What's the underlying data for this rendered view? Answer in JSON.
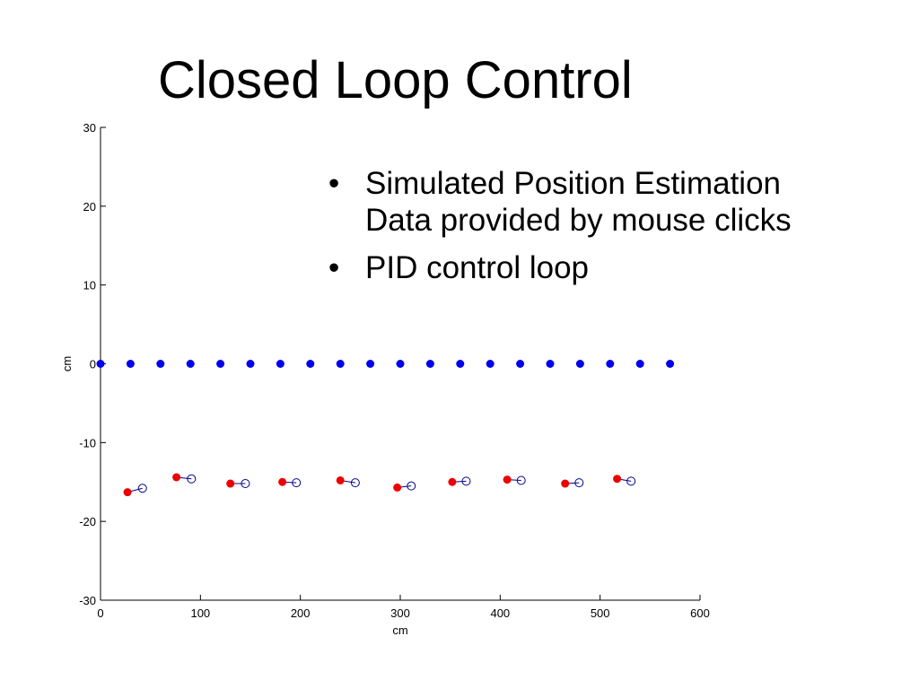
{
  "slide": {
    "title": "Closed Loop Control",
    "bullets": [
      {
        "marker": "•",
        "lines": [
          "Simulated Position Estimation",
          "Data provided by mouse clicks"
        ]
      },
      {
        "marker": "•",
        "lines": [
          "PID control loop"
        ]
      }
    ]
  },
  "chart_data": {
    "type": "scatter",
    "title": "",
    "xlabel": "cm",
    "ylabel": "cm",
    "xlim": [
      0,
      600
    ],
    "ylim": [
      -30,
      30
    ],
    "xticks": [
      0,
      100,
      200,
      300,
      400,
      500,
      600
    ],
    "yticks": [
      -30,
      -20,
      -10,
      0,
      10,
      20,
      30
    ],
    "grid": false,
    "colors": {
      "path": "#0000ee",
      "actual": "#ee0000",
      "estimate": "#000088",
      "axis": "#000000"
    },
    "series": [
      {
        "marker": "filled-circle",
        "color": "#0000ee",
        "x": [
          0,
          30,
          60,
          90,
          120,
          150,
          180,
          210,
          240,
          270,
          300,
          330,
          360,
          390,
          420,
          450,
          480,
          510,
          540,
          570
        ],
        "y": [
          0,
          0,
          0,
          0,
          0,
          0,
          0,
          0,
          0,
          0,
          0,
          0,
          0,
          0,
          0,
          0,
          0,
          0,
          0,
          0
        ]
      },
      {
        "marker": "filled-circle",
        "color": "#ee0000",
        "x": [
          27,
          76,
          130,
          182,
          240,
          297,
          352,
          407,
          465,
          517
        ],
        "y": [
          -16.3,
          -14.4,
          -15.2,
          -15.0,
          -14.8,
          -15.7,
          -15.0,
          -14.7,
          -15.2,
          -14.6
        ]
      },
      {
        "marker": "open-circle",
        "color": "#000088",
        "x": [
          42,
          91,
          145,
          196,
          255,
          311,
          366,
          421,
          479,
          531
        ],
        "y": [
          -15.8,
          -14.6,
          -15.2,
          -15.1,
          -15.1,
          -15.5,
          -14.9,
          -14.8,
          -15.1,
          -14.9
        ]
      }
    ]
  }
}
